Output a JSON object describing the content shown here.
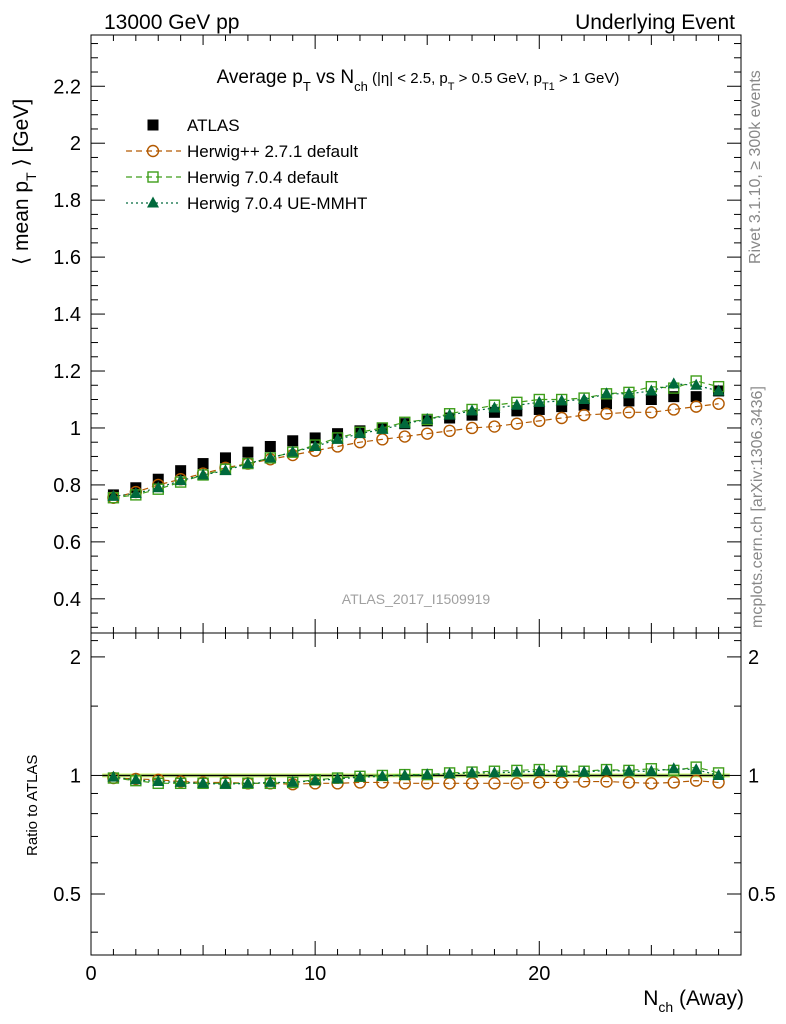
{
  "header": {
    "left": "13000 GeV pp",
    "right": "Underlying Event"
  },
  "side_labels": {
    "rivet": "Rivet 3.1.10, ≥ 300k events",
    "mcplots": "mcplots.cern.ch [arXiv:1306.3436]"
  },
  "watermark": "ATLAS_2017_I1509919",
  "chart_data": {
    "type": "scatter",
    "title": {
      "t1": "Average p",
      "t1_sub": "T",
      "t2": " vs N",
      "t2_sub": "ch",
      "t3": " (|η| < 2.5, p",
      "t3_sub": "T",
      "t4": " > 0.5 GeV, p",
      "t4_sub": "T1",
      "t5": " > 1 GeV)"
    },
    "ylabel": {
      "a": "⟨ mean p",
      "sub": "T",
      "b": " ⟩ [GeV]"
    },
    "xlabel": {
      "a": "N",
      "sub": "ch",
      "b": " (Away)"
    },
    "ratio_ylabel": "Ratio to ATLAS",
    "xlim": [
      0,
      29
    ],
    "ylim": [
      0.28,
      2.38
    ],
    "ratio_ylim": [
      0.35,
      2.3
    ],
    "ratio_scale": "log",
    "x_ticks": [
      "0",
      "10",
      "20"
    ],
    "x_tick_values": [
      0,
      10,
      20
    ],
    "y_ticks": [
      "0.4",
      "0.6",
      "0.8",
      "1",
      "1.2",
      "1.4",
      "1.6",
      "1.8",
      "2",
      "2.2"
    ],
    "y_tick_values": [
      0.4,
      0.6,
      0.8,
      1.0,
      1.2,
      1.4,
      1.6,
      1.8,
      2.0,
      2.2
    ],
    "ratio_ticks": [
      "0.5",
      "1",
      "2"
    ],
    "ratio_tick_values": [
      0.5,
      1,
      2
    ],
    "legend_position": "top-left",
    "x": [
      1,
      2,
      3,
      4,
      5,
      6,
      7,
      8,
      9,
      10,
      11,
      12,
      13,
      14,
      15,
      16,
      17,
      18,
      19,
      20,
      21,
      22,
      23,
      24,
      25,
      26,
      27,
      28
    ],
    "series": [
      {
        "name": "ATLAS",
        "color": "#000000",
        "marker": "filled-square",
        "line": "none",
        "values": [
          0.765,
          0.79,
          0.82,
          0.85,
          0.875,
          0.895,
          0.915,
          0.935,
          0.955,
          0.965,
          0.98,
          0.99,
          1.0,
          1.015,
          1.025,
          1.035,
          1.045,
          1.055,
          1.06,
          1.065,
          1.075,
          1.08,
          1.085,
          1.095,
          1.1,
          1.11,
          1.11,
          1.13
        ],
        "ratio": [
          1,
          1,
          1,
          1,
          1,
          1,
          1,
          1,
          1,
          1,
          1,
          1,
          1,
          1,
          1,
          1,
          1,
          1,
          1,
          1,
          1,
          1,
          1,
          1,
          1,
          1,
          1,
          1
        ]
      },
      {
        "name": "Herwig++ 2.7.1 default",
        "color": "#b35900",
        "marker": "open-circle",
        "line": "dashed",
        "values": [
          0.755,
          0.775,
          0.8,
          0.82,
          0.84,
          0.86,
          0.875,
          0.89,
          0.905,
          0.92,
          0.935,
          0.95,
          0.96,
          0.97,
          0.98,
          0.99,
          1.0,
          1.005,
          1.015,
          1.025,
          1.035,
          1.045,
          1.05,
          1.055,
          1.055,
          1.065,
          1.075,
          1.085
        ],
        "ratio": [
          0.985,
          0.98,
          0.975,
          0.965,
          0.96,
          0.96,
          0.955,
          0.955,
          0.95,
          0.955,
          0.955,
          0.96,
          0.96,
          0.955,
          0.955,
          0.955,
          0.955,
          0.955,
          0.955,
          0.96,
          0.96,
          0.965,
          0.965,
          0.96,
          0.955,
          0.96,
          0.97,
          0.96
        ]
      },
      {
        "name": "Herwig 7.0.4 default",
        "color": "#3f9e1a",
        "marker": "open-square",
        "line": "dashed",
        "values": [
          0.755,
          0.765,
          0.785,
          0.81,
          0.835,
          0.855,
          0.875,
          0.895,
          0.915,
          0.94,
          0.965,
          0.985,
          1.0,
          1.02,
          1.03,
          1.05,
          1.065,
          1.08,
          1.09,
          1.1,
          1.1,
          1.105,
          1.12,
          1.125,
          1.145,
          1.14,
          1.165,
          1.145
        ],
        "ratio": [
          0.985,
          0.97,
          0.955,
          0.955,
          0.955,
          0.955,
          0.955,
          0.955,
          0.96,
          0.975,
          0.985,
          0.995,
          1.0,
          1.005,
          1.005,
          1.015,
          1.02,
          1.025,
          1.03,
          1.035,
          1.025,
          1.025,
          1.035,
          1.03,
          1.04,
          1.03,
          1.05,
          1.015
        ]
      },
      {
        "name": "Herwig 7.0.4 UE-MMHT",
        "color": "#00693c",
        "marker": "filled-triangle",
        "line": "dotted",
        "values": [
          0.76,
          0.77,
          0.79,
          0.815,
          0.835,
          0.85,
          0.875,
          0.895,
          0.915,
          0.935,
          0.96,
          0.98,
          0.995,
          1.015,
          1.03,
          1.045,
          1.06,
          1.07,
          1.08,
          1.09,
          1.095,
          1.1,
          1.12,
          1.12,
          1.13,
          1.155,
          1.15,
          1.13
        ],
        "ratio": [
          0.99,
          0.975,
          0.965,
          0.96,
          0.955,
          0.95,
          0.955,
          0.96,
          0.96,
          0.97,
          0.98,
          0.99,
          0.995,
          1.0,
          1.005,
          1.01,
          1.015,
          1.015,
          1.02,
          1.025,
          1.02,
          1.02,
          1.03,
          1.025,
          1.025,
          1.04,
          1.035,
          1.0
        ]
      }
    ]
  }
}
